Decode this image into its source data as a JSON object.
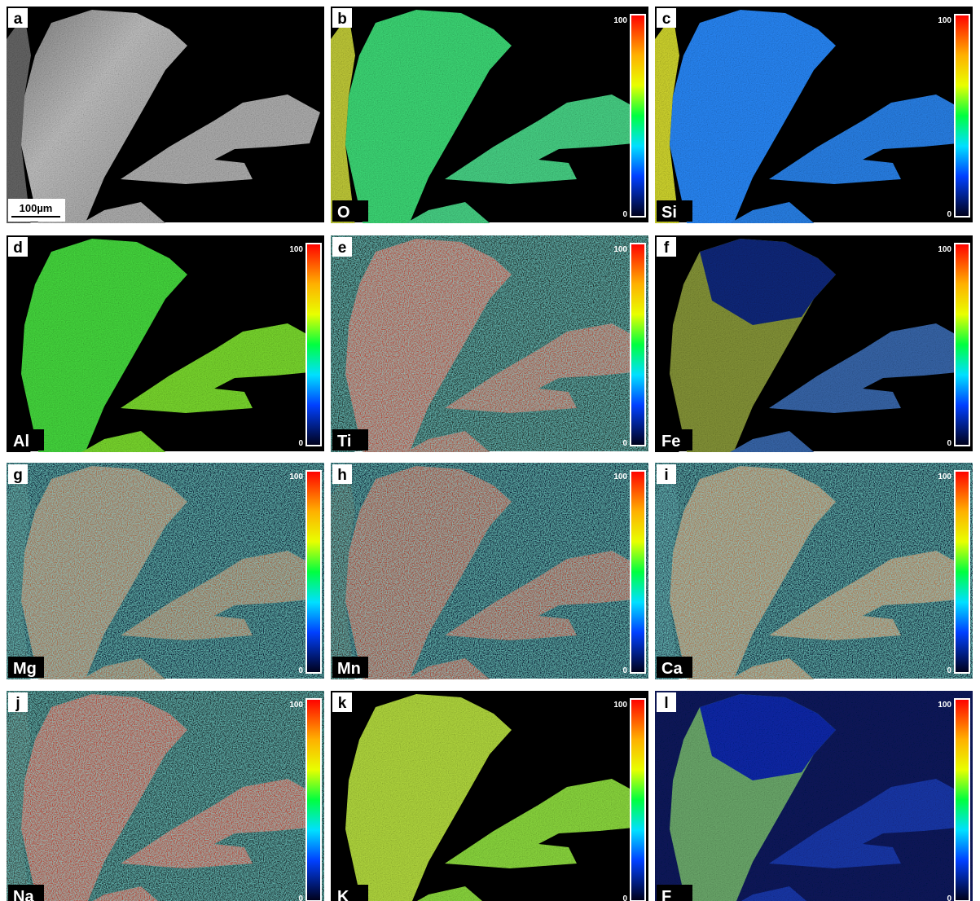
{
  "panels": [
    {
      "letter": "a",
      "scale_bar": "100µm"
    },
    {
      "letter": "b",
      "element": "O",
      "scale_max": "100",
      "scale_min": "0"
    },
    {
      "letter": "c",
      "element": "Si",
      "scale_max": "100",
      "scale_min": "0"
    },
    {
      "letter": "d",
      "element": "Al",
      "scale_max": "100",
      "scale_min": "0"
    },
    {
      "letter": "e",
      "element": "Ti",
      "scale_max": "100",
      "scale_min": "0"
    },
    {
      "letter": "f",
      "element": "Fe",
      "scale_max": "100",
      "scale_min": "0"
    },
    {
      "letter": "g",
      "element": "Mg",
      "scale_max": "100",
      "scale_min": "0"
    },
    {
      "letter": "h",
      "element": "Mn",
      "scale_max": "100",
      "scale_min": "0"
    },
    {
      "letter": "i",
      "element": "Ca",
      "scale_max": "100",
      "scale_min": "0"
    },
    {
      "letter": "j",
      "element": "Na",
      "scale_max": "100",
      "scale_min": "0"
    },
    {
      "letter": "k",
      "element": "K",
      "scale_max": "100",
      "scale_min": "0"
    },
    {
      "letter": "l",
      "element": "F",
      "scale_max": "100",
      "scale_min": "0"
    }
  ]
}
